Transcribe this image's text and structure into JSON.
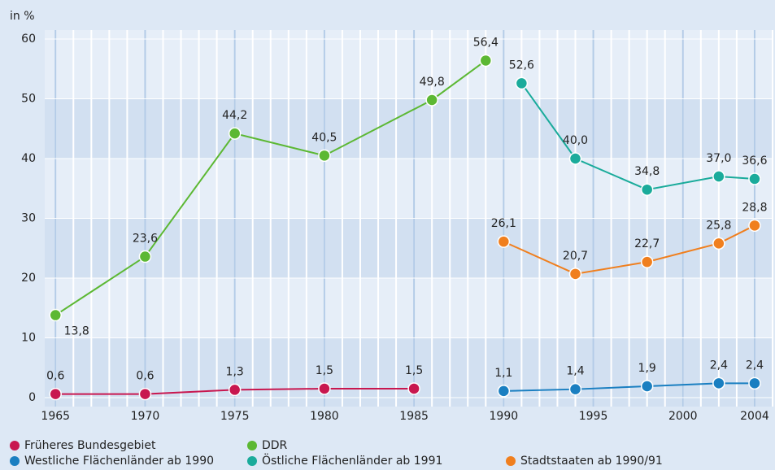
{
  "chart_data": {
    "type": "line",
    "y_label": "in %",
    "xlim": [
      1964.4,
      2005
    ],
    "ylim": [
      -1.5,
      61.5
    ],
    "xticks": [
      1965,
      1970,
      1975,
      1980,
      1985,
      1990,
      1995,
      2000,
      2004
    ],
    "yticks": [
      0,
      10,
      20,
      30,
      40,
      50,
      60
    ],
    "grid": true,
    "series": [
      {
        "name": "Früheres Bundesgebiet",
        "color": "#c8174f",
        "x": [
          1965,
          1970,
          1975,
          1980,
          1985
        ],
        "values": [
          0.6,
          0.6,
          1.3,
          1.5,
          1.5
        ],
        "value_labels": [
          "0,6",
          "0,6",
          "1,3",
          "1,5",
          "1,5"
        ]
      },
      {
        "name": "DDR",
        "color": "#5cb833",
        "x": [
          1965,
          1970,
          1975,
          1980,
          1986,
          1989
        ],
        "values": [
          13.8,
          23.6,
          44.2,
          40.5,
          49.8,
          56.4
        ],
        "value_labels": [
          "13,8",
          "23,6",
          "44,2",
          "40,5",
          "49,8",
          "56,4"
        ]
      },
      {
        "name": "Westliche Flächenländer ab 1990",
        "color": "#1a7fc1",
        "x": [
          1990,
          1994,
          1998,
          2002,
          2004
        ],
        "values": [
          1.1,
          1.4,
          1.9,
          2.4,
          2.4
        ],
        "value_labels": [
          "1,1",
          "1,4",
          "1,9",
          "2,4",
          "2,4"
        ]
      },
      {
        "name": "Östliche Flächenländer ab 1991",
        "color": "#1aab9b",
        "x": [
          1991,
          1994,
          1998,
          2002,
          2004
        ],
        "values": [
          52.6,
          40.0,
          34.8,
          37.0,
          36.6
        ],
        "value_labels": [
          "52,6",
          "40,0",
          "34,8",
          "37,0",
          "36,6"
        ]
      },
      {
        "name": "Stadtstaaten ab 1990/91",
        "color": "#f07f1e",
        "x": [
          1990,
          1994,
          1998,
          2002,
          2004
        ],
        "values": [
          26.1,
          20.7,
          22.7,
          25.8,
          28.8
        ],
        "value_labels": [
          "26,1",
          "20,7",
          "22,7",
          "25,8",
          "28,8"
        ]
      }
    ]
  }
}
